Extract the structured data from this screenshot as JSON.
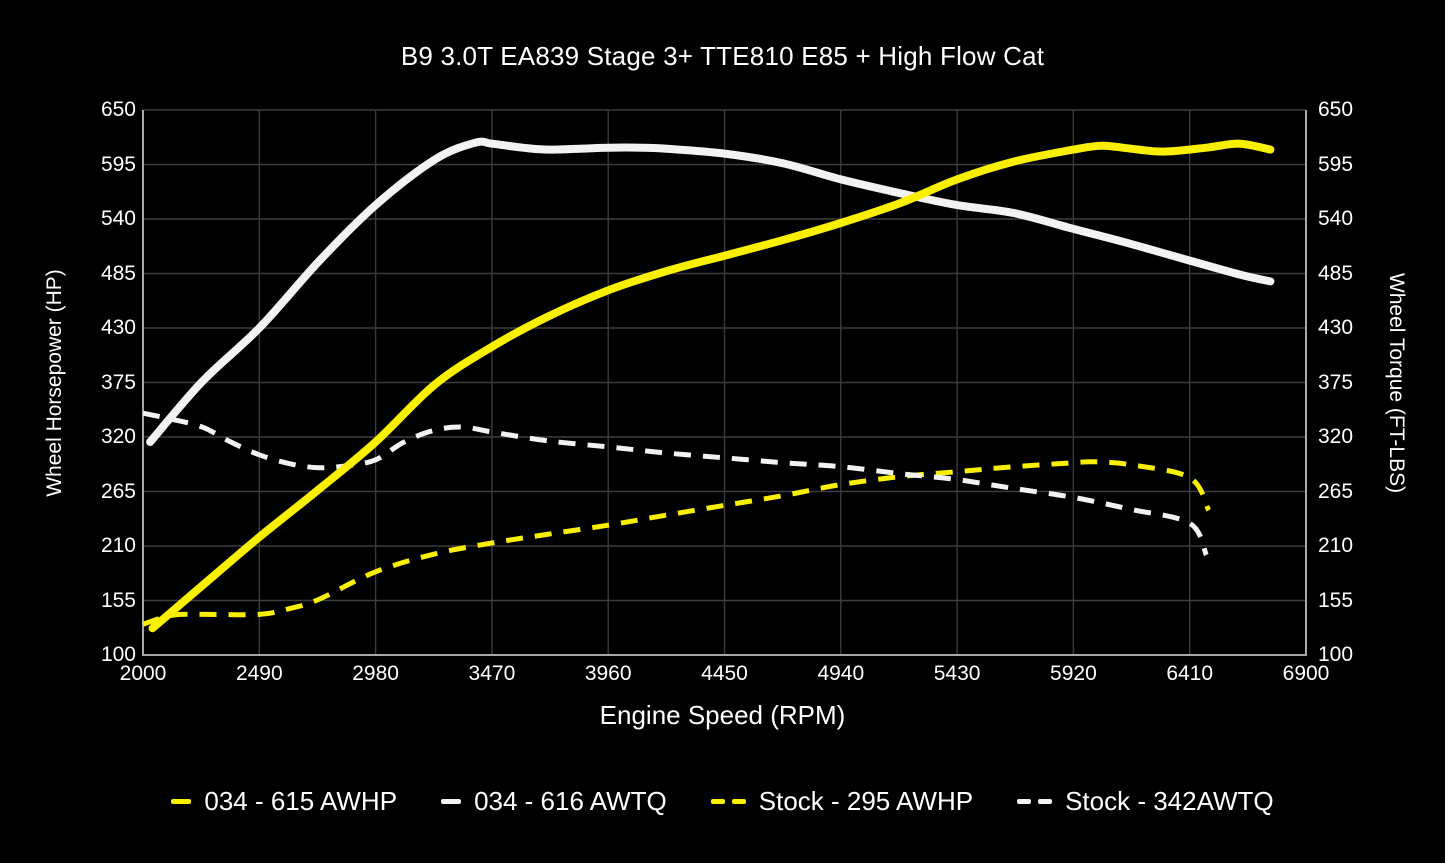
{
  "chart_data": {
    "type": "line",
    "title": "B9 3.0T EA839 Stage 3+ TTE810 E85 + High Flow Cat",
    "xlabel": "Engine Speed (RPM)",
    "ylabel_left": "Wheel Horsepower (HP)",
    "ylabel_right": "Wheel Torque (FT-LBS)",
    "xlim": [
      2000,
      6900
    ],
    "ylim": [
      100,
      650
    ],
    "x_ticks": [
      2000,
      2490,
      2980,
      3470,
      3960,
      4450,
      4940,
      5430,
      5920,
      6410,
      6900
    ],
    "y_ticks": [
      100,
      155,
      210,
      265,
      320,
      375,
      430,
      485,
      540,
      595,
      650
    ],
    "grid": true,
    "legend_position": "bottom",
    "colors": {
      "background": "#000000",
      "text": "#ffffff",
      "grid": "#3d3d3d",
      "axis": "#a8a8a8",
      "yellow": "#f8f000",
      "white": "#f2f2f2"
    },
    "series": [
      {
        "name": "034 - 615 AWHP",
        "color": "#f8f000",
        "style": "solid",
        "width": 8,
        "points": [
          [
            2040,
            127
          ],
          [
            2250,
            170
          ],
          [
            2490,
            219
          ],
          [
            2740,
            267
          ],
          [
            2980,
            315
          ],
          [
            3230,
            373
          ],
          [
            3470,
            411
          ],
          [
            3710,
            442
          ],
          [
            3960,
            468
          ],
          [
            4200,
            487
          ],
          [
            4450,
            503
          ],
          [
            4700,
            519
          ],
          [
            4940,
            536
          ],
          [
            5190,
            556
          ],
          [
            5430,
            580
          ],
          [
            5670,
            598
          ],
          [
            5920,
            610
          ],
          [
            6040,
            614
          ],
          [
            6160,
            611
          ],
          [
            6300,
            608
          ],
          [
            6480,
            612
          ],
          [
            6620,
            616
          ],
          [
            6750,
            610
          ]
        ]
      },
      {
        "name": "034 - 616 AWTQ",
        "color": "#f2f2f2",
        "style": "solid",
        "width": 8,
        "points": [
          [
            2030,
            315
          ],
          [
            2250,
            376
          ],
          [
            2490,
            430
          ],
          [
            2740,
            497
          ],
          [
            2980,
            554
          ],
          [
            3230,
            600
          ],
          [
            3400,
            617
          ],
          [
            3470,
            616
          ],
          [
            3600,
            612
          ],
          [
            3710,
            610
          ],
          [
            3850,
            611
          ],
          [
            3960,
            612
          ],
          [
            4100,
            612
          ],
          [
            4200,
            611
          ],
          [
            4450,
            606
          ],
          [
            4700,
            596
          ],
          [
            4940,
            580
          ],
          [
            5190,
            566
          ],
          [
            5430,
            554
          ],
          [
            5670,
            546
          ],
          [
            5920,
            530
          ],
          [
            6160,
            515
          ],
          [
            6410,
            498
          ],
          [
            6620,
            484
          ],
          [
            6750,
            477
          ]
        ]
      },
      {
        "name": "Stock - 295 AWHP",
        "color": "#f8f000",
        "style": "dashed",
        "width": 5,
        "points": [
          [
            2000,
            131
          ],
          [
            2120,
            140
          ],
          [
            2250,
            141
          ],
          [
            2490,
            141
          ],
          [
            2620,
            147
          ],
          [
            2740,
            156
          ],
          [
            2980,
            184
          ],
          [
            3230,
            202
          ],
          [
            3470,
            213
          ],
          [
            3710,
            222
          ],
          [
            3960,
            231
          ],
          [
            4200,
            241
          ],
          [
            4450,
            251
          ],
          [
            4700,
            261
          ],
          [
            4940,
            272
          ],
          [
            5190,
            280
          ],
          [
            5430,
            285
          ],
          [
            5670,
            290
          ],
          [
            5920,
            294
          ],
          [
            6010,
            295
          ],
          [
            6160,
            292
          ],
          [
            6410,
            279
          ],
          [
            6490,
            246
          ]
        ]
      },
      {
        "name": "Stock - 342AWTQ",
        "color": "#f2f2f2",
        "style": "dashed",
        "width": 5,
        "points": [
          [
            2000,
            344
          ],
          [
            2120,
            338
          ],
          [
            2250,
            330
          ],
          [
            2370,
            315
          ],
          [
            2490,
            302
          ],
          [
            2620,
            293
          ],
          [
            2740,
            289
          ],
          [
            2860,
            291
          ],
          [
            2980,
            297
          ],
          [
            3100,
            315
          ],
          [
            3230,
            327
          ],
          [
            3350,
            330
          ],
          [
            3470,
            325
          ],
          [
            3710,
            316
          ],
          [
            3960,
            310
          ],
          [
            4200,
            304
          ],
          [
            4450,
            299
          ],
          [
            4700,
            294
          ],
          [
            4940,
            290
          ],
          [
            5190,
            283
          ],
          [
            5430,
            277
          ],
          [
            5670,
            268
          ],
          [
            5920,
            259
          ],
          [
            6160,
            247
          ],
          [
            6410,
            233
          ],
          [
            6480,
            201
          ]
        ]
      }
    ]
  }
}
